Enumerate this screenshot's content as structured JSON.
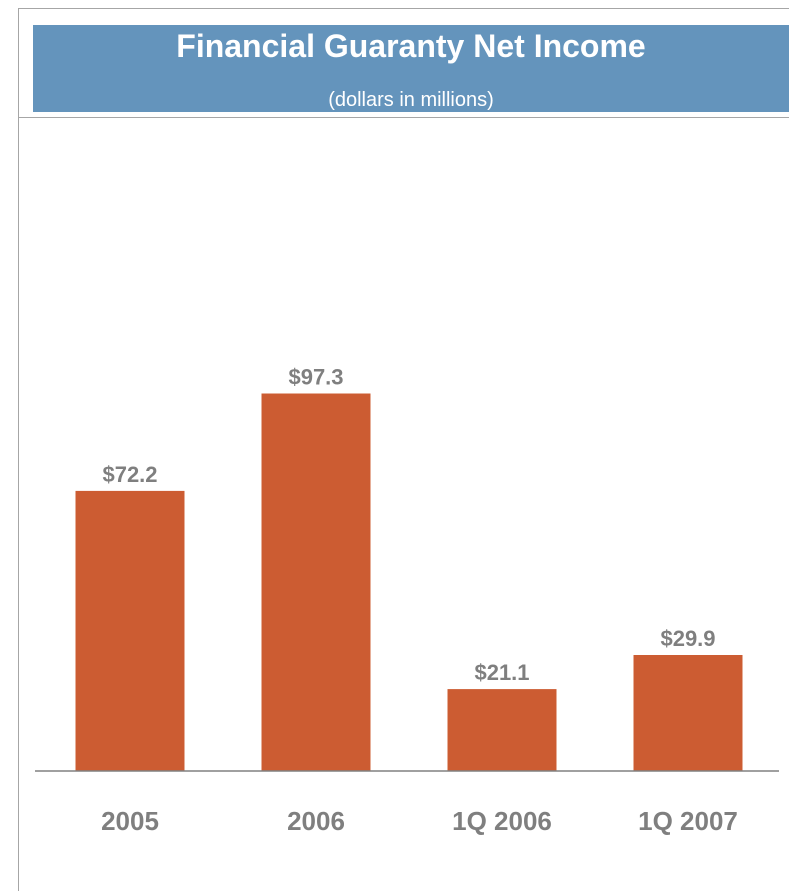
{
  "header": {
    "title": "Financial Guaranty Net Income",
    "subtitle": "(dollars in millions)",
    "background_color": "#6494bc",
    "text_color": "#ffffff"
  },
  "chart_data": {
    "type": "bar",
    "title": "Financial Guaranty Net Income",
    "subtitle": "(dollars in millions)",
    "categories": [
      "2005",
      "2006",
      "1Q 2006",
      "1Q 2007"
    ],
    "values": [
      72.2,
      97.3,
      21.1,
      29.9
    ],
    "data_labels": [
      "$72.2",
      "$97.3",
      "$21.1",
      "$29.9"
    ],
    "xlabel": "",
    "ylabel": "",
    "ylim": [
      0,
      100
    ],
    "grid": false,
    "legend": "none",
    "bar_color": "#cc5c32",
    "label_color": "#7f7f7f"
  }
}
